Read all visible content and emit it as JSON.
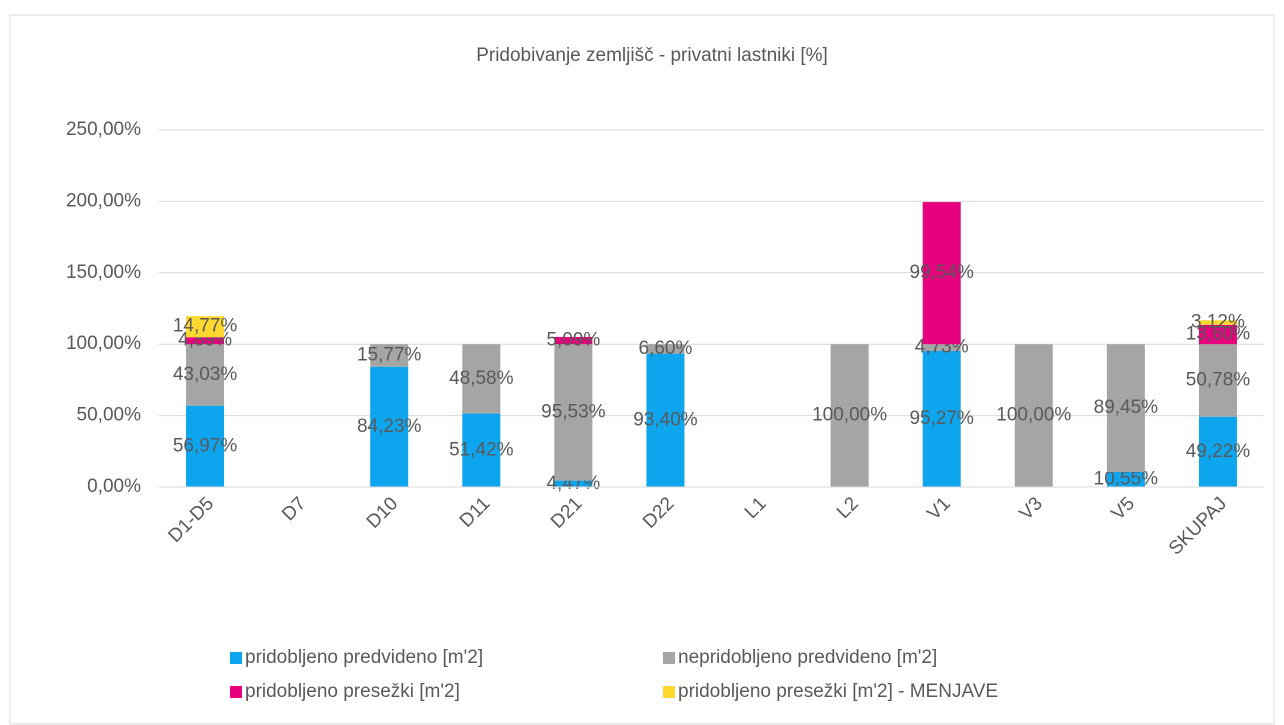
{
  "chart_data": {
    "type": "stacked_bar",
    "title": "Pridobivanje zemljišč - privatni lastniki [%]",
    "categories": [
      "D1-D5",
      "D7",
      "D10",
      "D11",
      "D21",
      "D22",
      "L1",
      "L2",
      "V1",
      "V3",
      "V5",
      "SKUPAJ"
    ],
    "series": [
      {
        "name": "pridobljeno predvideno [m'2]",
        "color": "#0ea5ef",
        "values": [
          56.97,
          null,
          84.23,
          51.42,
          4.47,
          93.4,
          null,
          null,
          95.27,
          null,
          10.55,
          49.22
        ],
        "value_labels": [
          "56,97%",
          null,
          "84,23%",
          "51,42%",
          "4,47%",
          "93,40%",
          null,
          null,
          "95,27%",
          null,
          "10,55%",
          "49,22%"
        ]
      },
      {
        "name": "nepridobljeno predvideno [m'2]",
        "color": "#a5a5a5",
        "values": [
          43.03,
          null,
          15.77,
          48.58,
          95.53,
          6.6,
          null,
          100.0,
          4.73,
          100.0,
          89.45,
          50.78
        ],
        "value_labels": [
          "43,03%",
          null,
          "15,77%",
          "48,58%",
          "95,53%",
          "6,60%",
          null,
          "100,00%",
          "4,73%",
          "100,00%",
          "89,45%",
          "50,78%"
        ]
      },
      {
        "name": "pridobljeno presežki [m'2]",
        "color": "#e6007e",
        "values": [
          4.89,
          null,
          null,
          null,
          5.09,
          null,
          null,
          null,
          99.54,
          null,
          null,
          13.6
        ],
        "value_labels": [
          "4,89%",
          null,
          null,
          null,
          "5,09%",
          null,
          null,
          null,
          "99,54%",
          null,
          null,
          "13,60%"
        ]
      },
      {
        "name": "pridobljeno presežki [m'2] - MENJAVE",
        "color": "#ffd92f",
        "values": [
          14.77,
          null,
          null,
          null,
          null,
          null,
          null,
          null,
          null,
          null,
          null,
          3.12
        ],
        "value_labels": [
          "14,77%",
          null,
          null,
          null,
          null,
          null,
          null,
          null,
          null,
          null,
          null,
          "3,12%"
        ]
      }
    ],
    "ylim": [
      0,
      250
    ],
    "yticks": [
      {
        "value": 0,
        "label": "0,00%"
      },
      {
        "value": 50,
        "label": "50,00%"
      },
      {
        "value": 100,
        "label": "100,00%"
      },
      {
        "value": 150,
        "label": "150,00%"
      },
      {
        "value": 200,
        "label": "200,00%"
      },
      {
        "value": 250,
        "label": "250,00%"
      }
    ],
    "grid": true,
    "legend": "bottom"
  }
}
